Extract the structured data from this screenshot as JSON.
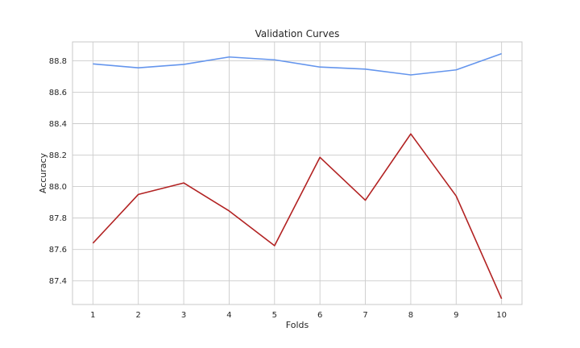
{
  "chart_data": {
    "type": "line",
    "title": "Validation Curves",
    "xlabel": "Folds",
    "ylabel": "Accuracy",
    "x": [
      1,
      2,
      3,
      4,
      5,
      6,
      7,
      8,
      9,
      10
    ],
    "x_ticks": [
      "1",
      "2",
      "3",
      "4",
      "5",
      "6",
      "7",
      "8",
      "9",
      "10"
    ],
    "y_ticks": [
      "87.4",
      "87.6",
      "87.8",
      "88.0",
      "88.2",
      "88.4",
      "88.6",
      "88.8"
    ],
    "xlim": [
      0.55,
      10.45
    ],
    "ylim": [
      87.25,
      88.92
    ],
    "grid": true,
    "series": [
      {
        "color": "#6495ed",
        "values": [
          88.78,
          88.755,
          88.777,
          88.824,
          88.806,
          88.76,
          88.747,
          88.71,
          88.742,
          88.845
        ]
      },
      {
        "color": "#b22222",
        "values": [
          87.64,
          87.95,
          88.023,
          87.845,
          87.624,
          88.186,
          87.913,
          88.335,
          87.94,
          87.287
        ]
      }
    ]
  }
}
